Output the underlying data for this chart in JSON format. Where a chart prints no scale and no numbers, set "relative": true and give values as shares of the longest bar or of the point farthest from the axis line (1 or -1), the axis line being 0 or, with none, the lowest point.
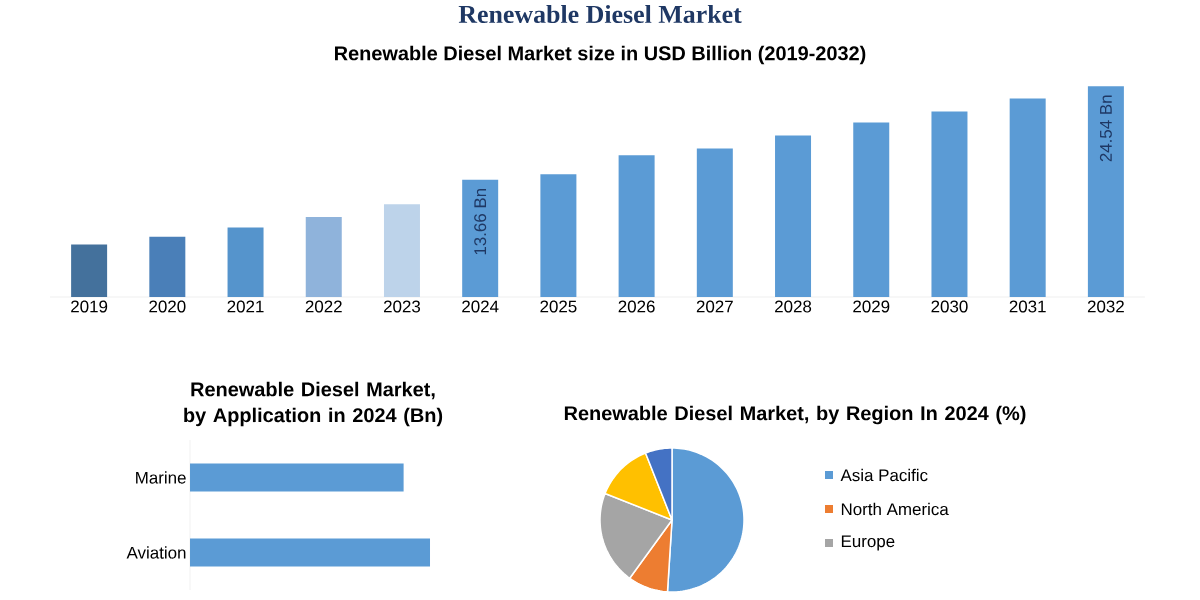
{
  "chart_data": [
    {
      "type": "bar",
      "title": "Renewable Diesel Market",
      "subtitle": "Renewable Diesel Market size in USD Billion (2019-2032)",
      "categories": [
        "2019",
        "2020",
        "2021",
        "2022",
        "2023",
        "2024",
        "2025",
        "2026",
        "2027",
        "2028",
        "2029",
        "2030",
        "2031",
        "2032"
      ],
      "values": [
        6.1,
        7.0,
        8.1,
        9.3,
        10.8,
        13.66,
        14.3,
        16.5,
        17.3,
        18.8,
        20.3,
        21.6,
        23.1,
        24.54
      ],
      "colors": [
        "#44719c",
        "#4a7fb8",
        "#5594cc",
        "#8fb3db",
        "#bdd3ea",
        "#5b9bd5",
        "#5b9bd5",
        "#5b9bd5",
        "#5b9bd5",
        "#5b9bd5",
        "#5b9bd5",
        "#5b9bd5",
        "#5b9bd5",
        "#5b9bd5"
      ],
      "value_labels": [
        null,
        null,
        null,
        null,
        null,
        "13.66 Bn",
        null,
        null,
        null,
        null,
        null,
        null,
        null,
        "24.54 Bn"
      ]
    },
    {
      "type": "bar",
      "orientation": "horizontal",
      "title": "Renewable Diesel Market, by Application in 2024 (Bn)",
      "relative": true,
      "categories": [
        "Marine",
        "Aviation"
      ],
      "values": [
        0.89,
        1
      ],
      "color": "#5b9bd5"
    },
    {
      "type": "pie",
      "title": "Renewable Diesel Market, by Region In 2024 (%)",
      "legend": "right",
      "categories": [
        "Asia Pacific",
        "North America",
        "Europe",
        null,
        null
      ],
      "values": [
        51,
        9,
        21,
        13,
        6
      ],
      "colors": [
        "#5b9bd5",
        "#ed7d31",
        "#a5a5a5",
        "#ffc000",
        "#4472c4"
      ]
    }
  ]
}
